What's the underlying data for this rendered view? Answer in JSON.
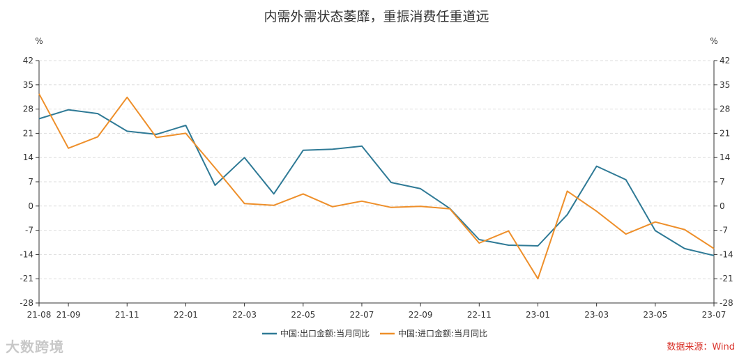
{
  "chart_data": {
    "type": "line",
    "title": "内需外需状态萎靡，重振消费任重道远",
    "y_unit_left": "%",
    "y_unit_right": "%",
    "ylim": [
      -28,
      42
    ],
    "yticks": [
      42,
      35,
      28,
      21,
      14,
      7,
      0,
      -7,
      -14,
      -21,
      -28
    ],
    "grid": true,
    "legend_position": "bottom",
    "x": [
      "21-08",
      "21-09",
      "21-10",
      "21-11",
      "21-12",
      "22-01",
      "22-02",
      "22-03",
      "22-04",
      "22-05",
      "22-06",
      "22-07",
      "22-08",
      "22-09",
      "22-10",
      "22-11",
      "22-12",
      "23-01",
      "23-02",
      "23-03",
      "23-04",
      "23-05",
      "23-06",
      "23-07"
    ],
    "x_tick_labels": [
      "21-08",
      "21-09",
      "21-11",
      "22-01",
      "22-03",
      "22-05",
      "22-07",
      "22-09",
      "22-11",
      "23-01",
      "23-03",
      "23-05",
      "23-07"
    ],
    "series": [
      {
        "name": "中国:出口金额:当月同比",
        "color": "#2f7a96",
        "values": [
          25.2,
          27.8,
          26.7,
          21.6,
          20.7,
          23.3,
          6.0,
          14.0,
          3.5,
          16.1,
          16.4,
          17.3,
          6.8,
          5.0,
          -0.7,
          -9.7,
          -11.3,
          -11.5,
          -2.5,
          11.5,
          7.6,
          -7.1,
          -12.3,
          -14.3
        ]
      },
      {
        "name": "中国:进口金额:当月同比",
        "color": "#ee8f2a",
        "values": [
          32.4,
          16.7,
          20.0,
          31.4,
          19.8,
          21.0,
          11.0,
          0.7,
          0.2,
          3.5,
          -0.2,
          1.4,
          -0.4,
          -0.1,
          -0.8,
          -10.7,
          -7.2,
          -21.0,
          4.3,
          -1.5,
          -8.1,
          -4.6,
          -6.8,
          -12.3
        ]
      }
    ]
  },
  "source_text": "数据来源：Wind",
  "watermark_text": "大数跨境"
}
